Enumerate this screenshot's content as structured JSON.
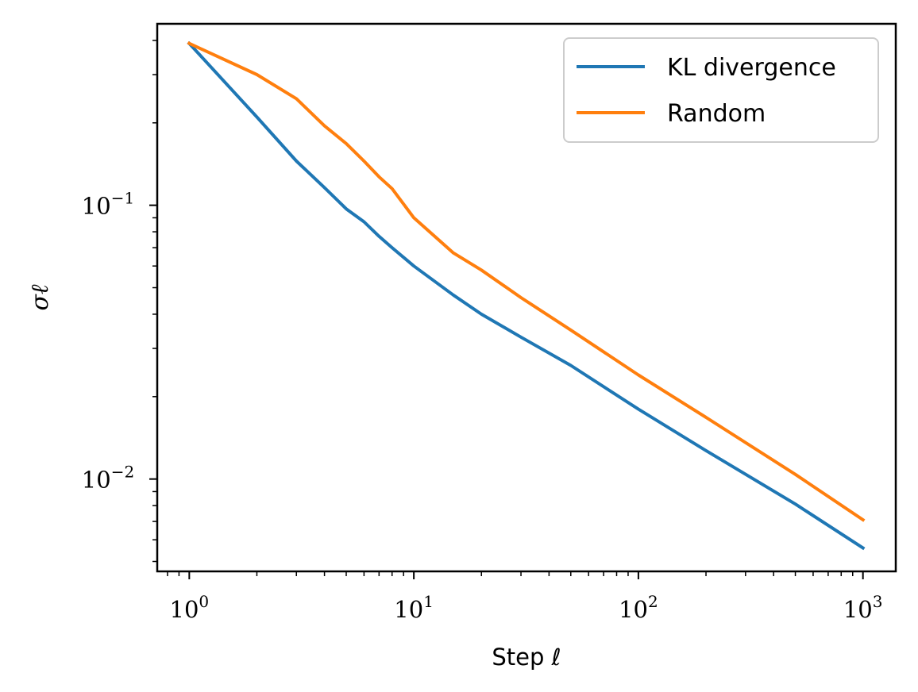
{
  "chart_data": {
    "type": "line",
    "xscale": "log",
    "yscale": "log",
    "xlim": [
      0.72,
      1400
    ],
    "ylim": [
      0.0046,
      0.46
    ],
    "xlabel": "Step ℓ",
    "ylabel": "σℓ",
    "legend_position": "top-right",
    "x_ticks": [
      {
        "value": 1,
        "base": "10",
        "exp": "0"
      },
      {
        "value": 10,
        "base": "10",
        "exp": "1"
      },
      {
        "value": 100,
        "base": "10",
        "exp": "2"
      },
      {
        "value": 1000,
        "base": "10",
        "exp": "3"
      }
    ],
    "y_ticks": [
      {
        "value": 0.1,
        "base": "10",
        "exp": "−1"
      },
      {
        "value": 0.01,
        "base": "10",
        "exp": "−2"
      }
    ],
    "series": [
      {
        "name": "KL divergence",
        "color": "#1f77b4",
        "x": [
          1,
          2,
          3,
          4,
          5,
          6,
          7,
          8,
          10,
          15,
          20,
          30,
          50,
          100,
          200,
          500,
          1000
        ],
        "y": [
          0.39,
          0.21,
          0.145,
          0.116,
          0.097,
          0.087,
          0.077,
          0.07,
          0.06,
          0.047,
          0.04,
          0.033,
          0.026,
          0.018,
          0.0127,
          0.0081,
          0.0056
        ]
      },
      {
        "name": "Random",
        "color": "#ff7f0e",
        "x": [
          1,
          2,
          3,
          4,
          5,
          6,
          7,
          8,
          10,
          15,
          20,
          30,
          50,
          100,
          200,
          500,
          1000
        ],
        "y": [
          0.39,
          0.3,
          0.245,
          0.195,
          0.168,
          0.145,
          0.127,
          0.115,
          0.09,
          0.067,
          0.058,
          0.046,
          0.035,
          0.024,
          0.0168,
          0.0104,
          0.0071
        ]
      }
    ]
  }
}
